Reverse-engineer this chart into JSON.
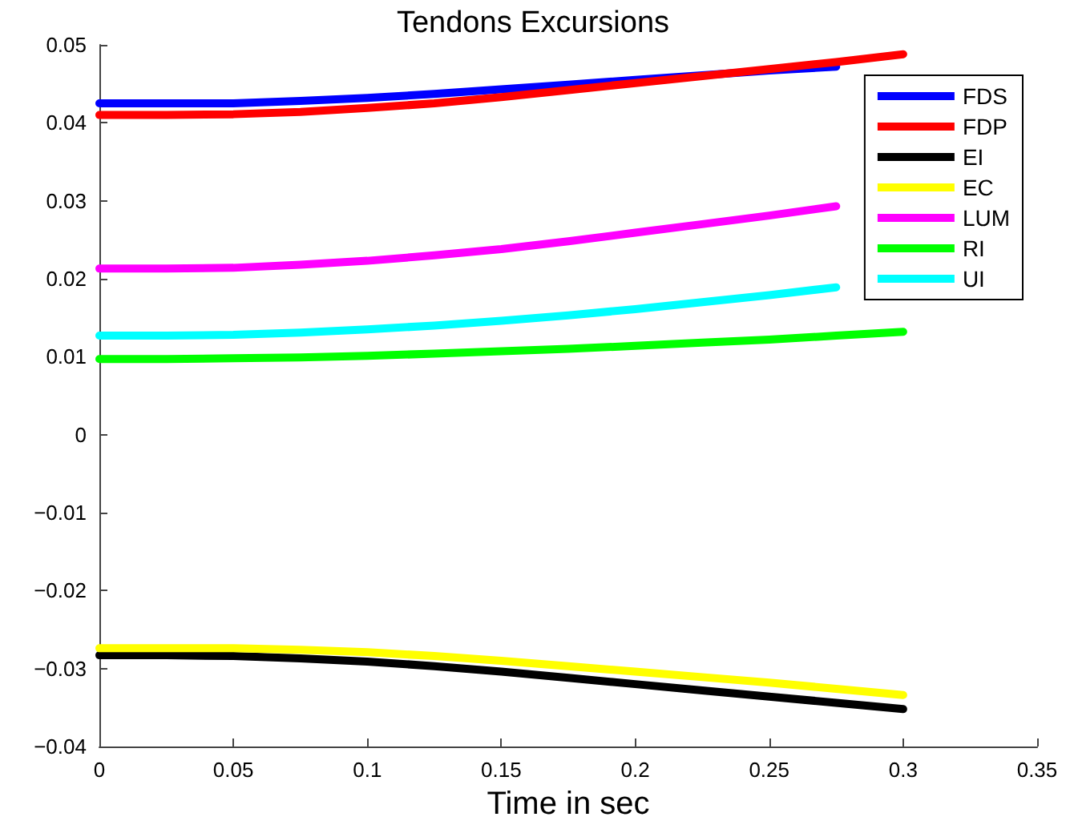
{
  "chart_data": {
    "type": "line",
    "title": "Tendons Excursions",
    "xlabel": "Time in sec",
    "x": [
      0,
      0.025,
      0.05,
      0.075,
      0.1,
      0.125,
      0.15,
      0.175,
      0.2,
      0.225,
      0.25,
      0.275,
      0.3
    ],
    "series": [
      {
        "name": "FDS",
        "color": "#0000ff",
        "values": [
          0.0425,
          0.0425,
          0.0425,
          0.0428,
          0.0432,
          0.0437,
          0.0443,
          0.0449,
          0.0455,
          0.0461,
          0.0467,
          0.0472,
          null
        ]
      },
      {
        "name": "FDP",
        "color": "#ff0000",
        "values": [
          0.041,
          0.041,
          0.0411,
          0.0414,
          0.0419,
          0.0425,
          0.0433,
          0.0442,
          0.0451,
          0.046,
          0.0469,
          0.0478,
          0.0488
        ]
      },
      {
        "name": "EI",
        "color": "#000000",
        "values": [
          -0.0283,
          -0.0283,
          -0.0284,
          -0.0287,
          -0.0291,
          -0.0297,
          -0.0304,
          -0.0312,
          -0.032,
          -0.0328,
          -0.0336,
          -0.0344,
          -0.0352
        ]
      },
      {
        "name": "EC",
        "color": "#ffff00",
        "values": [
          -0.0274,
          -0.0274,
          -0.0274,
          -0.0276,
          -0.0279,
          -0.0284,
          -0.029,
          -0.0297,
          -0.0304,
          -0.0311,
          -0.0318,
          -0.0326,
          -0.0334
        ]
      },
      {
        "name": "LUM",
        "color": "#ff00ff",
        "values": [
          0.0213,
          0.0213,
          0.0214,
          0.0218,
          0.0223,
          0.023,
          0.0238,
          0.0248,
          0.0259,
          0.027,
          0.0281,
          0.0293,
          null
        ]
      },
      {
        "name": "RI",
        "color": "#00ff00",
        "values": [
          0.0097,
          0.0097,
          0.0098,
          0.0099,
          0.0101,
          0.0104,
          0.0107,
          0.011,
          0.0114,
          0.0118,
          0.0122,
          0.0127,
          0.0132
        ]
      },
      {
        "name": "UI",
        "color": "#00ffff",
        "values": [
          0.0127,
          0.0127,
          0.0128,
          0.0131,
          0.0135,
          0.014,
          0.0146,
          0.0153,
          0.0161,
          0.017,
          0.0179,
          0.0189,
          null
        ]
      }
    ],
    "xlim": [
      0,
      0.35
    ],
    "xticks": [
      0,
      0.05,
      0.1,
      0.15,
      0.2,
      0.25,
      0.3,
      0.35
    ],
    "ylim": [
      -0.04,
      0.05
    ],
    "yticks": [
      -0.04,
      -0.03,
      -0.02,
      -0.01,
      0,
      0.01,
      0.02,
      0.03,
      0.04,
      0.05
    ],
    "grid": false,
    "legend": "top right",
    "marker": "none",
    "line_style": "solid"
  }
}
